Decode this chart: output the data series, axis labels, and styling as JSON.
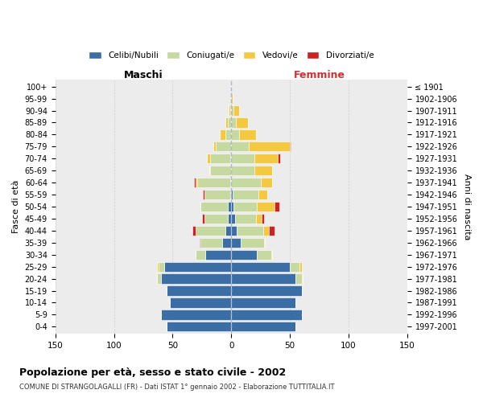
{
  "age_groups": [
    "100+",
    "95-99",
    "90-94",
    "85-89",
    "80-84",
    "75-79",
    "70-74",
    "65-69",
    "60-64",
    "55-59",
    "50-54",
    "45-49",
    "40-44",
    "35-39",
    "30-34",
    "25-29",
    "20-24",
    "15-19",
    "10-14",
    "5-9",
    "0-4"
  ],
  "birth_years": [
    "≤ 1901",
    "1902-1906",
    "1907-1911",
    "1912-1916",
    "1917-1921",
    "1922-1926",
    "1927-1931",
    "1932-1936",
    "1937-1941",
    "1942-1946",
    "1947-1951",
    "1952-1956",
    "1957-1961",
    "1962-1966",
    "1967-1971",
    "1972-1976",
    "1977-1981",
    "1982-1986",
    "1987-1991",
    "1992-1996",
    "1997-2001"
  ],
  "maschi": {
    "celibi": [
      0,
      0,
      0,
      0,
      0,
      0,
      1,
      0,
      1,
      1,
      3,
      3,
      5,
      8,
      22,
      57,
      60,
      55,
      52,
      60,
      55
    ],
    "coniugati": [
      0,
      0,
      1,
      3,
      5,
      13,
      17,
      18,
      28,
      22,
      23,
      20,
      25,
      18,
      8,
      5,
      3,
      0,
      0,
      0,
      0
    ],
    "vedovi": [
      0,
      0,
      1,
      2,
      5,
      2,
      3,
      1,
      1,
      0,
      0,
      0,
      0,
      0,
      0,
      1,
      0,
      0,
      0,
      0,
      0
    ],
    "divorziati": [
      0,
      0,
      0,
      0,
      0,
      0,
      0,
      0,
      2,
      1,
      0,
      2,
      3,
      1,
      0,
      0,
      0,
      0,
      0,
      0,
      0
    ]
  },
  "femmine": {
    "nubili": [
      0,
      0,
      0,
      0,
      0,
      0,
      0,
      0,
      0,
      1,
      2,
      3,
      5,
      8,
      22,
      50,
      55,
      60,
      55,
      60,
      55
    ],
    "coniugate": [
      0,
      0,
      2,
      4,
      7,
      15,
      20,
      20,
      25,
      22,
      20,
      18,
      22,
      20,
      12,
      8,
      5,
      0,
      0,
      0,
      0
    ],
    "vedove": [
      0,
      1,
      5,
      10,
      14,
      35,
      20,
      15,
      10,
      8,
      15,
      5,
      5,
      1,
      1,
      2,
      1,
      0,
      0,
      0,
      0
    ],
    "divorziate": [
      0,
      0,
      0,
      0,
      0,
      1,
      2,
      0,
      0,
      0,
      4,
      2,
      5,
      0,
      0,
      0,
      0,
      0,
      0,
      0,
      0
    ]
  },
  "colors": {
    "celibi": "#3a6ea5",
    "coniugati": "#c5d9a0",
    "vedovi": "#f5c842",
    "divorziati": "#cc2222"
  },
  "xlim": 150,
  "title": "Popolazione per età, sesso e stato civile - 2002",
  "subtitle": "COMUNE DI STRANGOLAGALLI (FR) - Dati ISTAT 1° gennaio 2002 - Elaborazione TUTTITALIA.IT",
  "ylabel": "Fasce di età",
  "ylabel_right": "Anni di nascita",
  "legend_labels": [
    "Celibi/Nubili",
    "Coniugati/e",
    "Vedovi/e",
    "Divorziati/e"
  ],
  "maschi_label": "Maschi",
  "femmine_label": "Femmine"
}
